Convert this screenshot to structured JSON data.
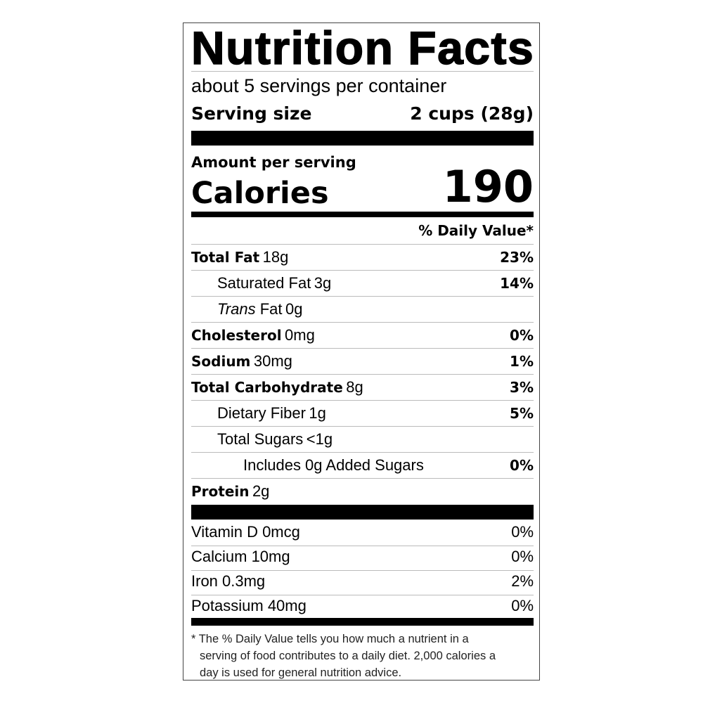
{
  "title": "Nutrition Facts",
  "servings_per_container": "about 5 servings per container",
  "serving_size": {
    "label": "Serving size",
    "value": "2 cups (28g)"
  },
  "amount_per_serving": "Amount per serving",
  "calories": {
    "label": "Calories",
    "value": "190"
  },
  "daily_value_header": "% Daily Value*",
  "nutrients": [
    {
      "name": "Total Fat",
      "amount": "18g",
      "dv": "23%",
      "bold": true,
      "indent": 0
    },
    {
      "name": "Saturated Fat",
      "amount": "3g",
      "dv": "14%",
      "bold": false,
      "indent": 1
    },
    {
      "name": "Trans",
      "name_suffix": "Fat",
      "amount": "0g",
      "dv": "",
      "bold": false,
      "indent": 1,
      "italic": true
    },
    {
      "name": "Cholesterol",
      "amount": "0mg",
      "dv": "0%",
      "bold": true,
      "indent": 0
    },
    {
      "name": "Sodium",
      "amount": "30mg",
      "dv": "1%",
      "bold": true,
      "indent": 0
    },
    {
      "name": "Total Carbohydrate",
      "amount": "8g",
      "dv": "3%",
      "bold": true,
      "indent": 0
    },
    {
      "name": "Dietary Fiber",
      "amount": "1g",
      "dv": "5%",
      "bold": false,
      "indent": 1
    },
    {
      "name": "Total Sugars",
      "amount": "<1g",
      "dv": "",
      "bold": false,
      "indent": 1
    },
    {
      "name": "Includes 0g Added Sugars",
      "amount": "",
      "dv": "0%",
      "bold": false,
      "indent": 2
    },
    {
      "name": "Protein",
      "amount": "2g",
      "dv": "",
      "bold": true,
      "indent": 0
    }
  ],
  "vitamins": [
    {
      "name": "Vitamin D 0mcg",
      "dv": "0%"
    },
    {
      "name": "Calcium 10mg",
      "dv": "0%"
    },
    {
      "name": "Iron 0.3mg",
      "dv": "2%"
    },
    {
      "name": "Potassium 40mg",
      "dv": "0%"
    }
  ],
  "footnote": [
    "* The  % Daily Value tells you how much a nutrient in a",
    "serving of food contributes to a daily diet. 2,000 calories a",
    "day is used for general nutrition advice."
  ]
}
